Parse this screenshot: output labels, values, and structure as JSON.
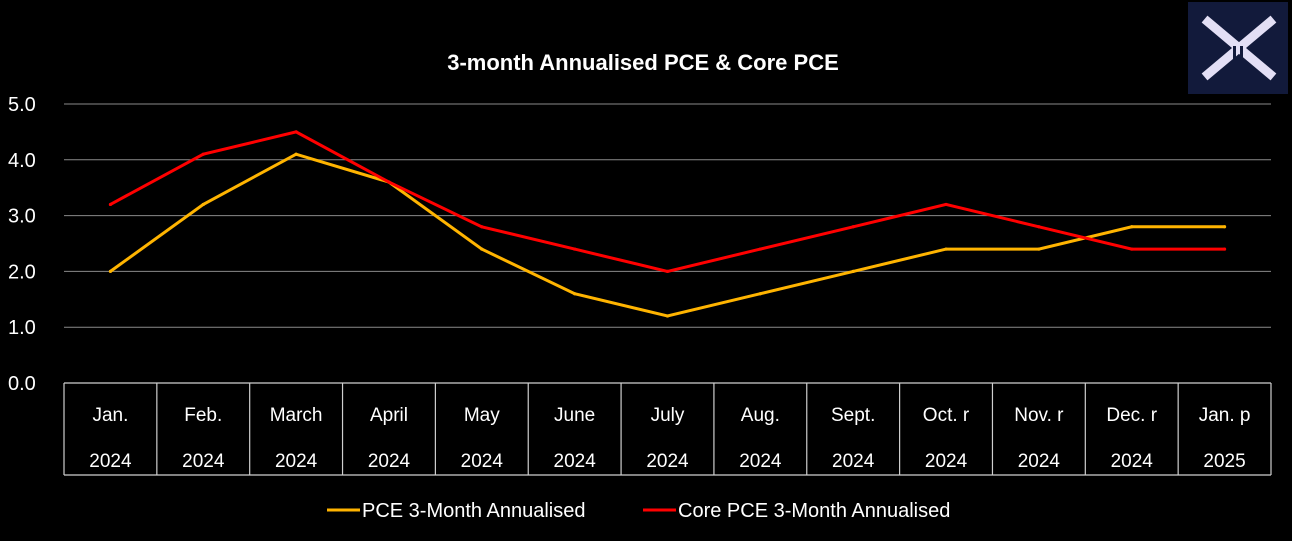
{
  "chart_data": {
    "type": "line",
    "title": "3-month Annualised PCE & Core PCE",
    "xlabel": "",
    "ylabel": "",
    "ylim": [
      0,
      5
    ],
    "yticks": [
      "0.0",
      "1.0",
      "2.0",
      "3.0",
      "4.0",
      "5.0"
    ],
    "grid": true,
    "legend_position": "bottom",
    "categories": [
      [
        "Jan.",
        "2024"
      ],
      [
        "Feb.",
        "2024"
      ],
      [
        "March",
        "2024"
      ],
      [
        "April",
        "2024"
      ],
      [
        "May",
        "2024"
      ],
      [
        "June",
        "2024"
      ],
      [
        "July",
        "2024"
      ],
      [
        "Aug.",
        "2024"
      ],
      [
        "Sept.",
        "2024"
      ],
      [
        "Oct. r",
        "2024"
      ],
      [
        "Nov. r",
        "2024"
      ],
      [
        "Dec. r",
        "2024"
      ],
      [
        "Jan. p",
        "2025"
      ]
    ],
    "series": [
      {
        "name": "PCE 3-Month Annualised",
        "color": "#ffb400",
        "values": [
          2.0,
          3.2,
          4.1,
          3.6,
          2.4,
          1.6,
          1.2,
          1.6,
          2.0,
          2.4,
          2.4,
          2.8,
          2.8
        ]
      },
      {
        "name": "Core PCE 3-Month Annualised",
        "color": "#ff0000",
        "values": [
          3.2,
          4.1,
          4.5,
          3.6,
          2.8,
          2.4,
          2.0,
          2.4,
          2.8,
          3.2,
          2.8,
          2.4,
          2.4
        ]
      }
    ]
  },
  "logo": {
    "icon": "x-logo-icon",
    "bg_color": "#121a3b",
    "fg_color": "#e3dff5"
  }
}
